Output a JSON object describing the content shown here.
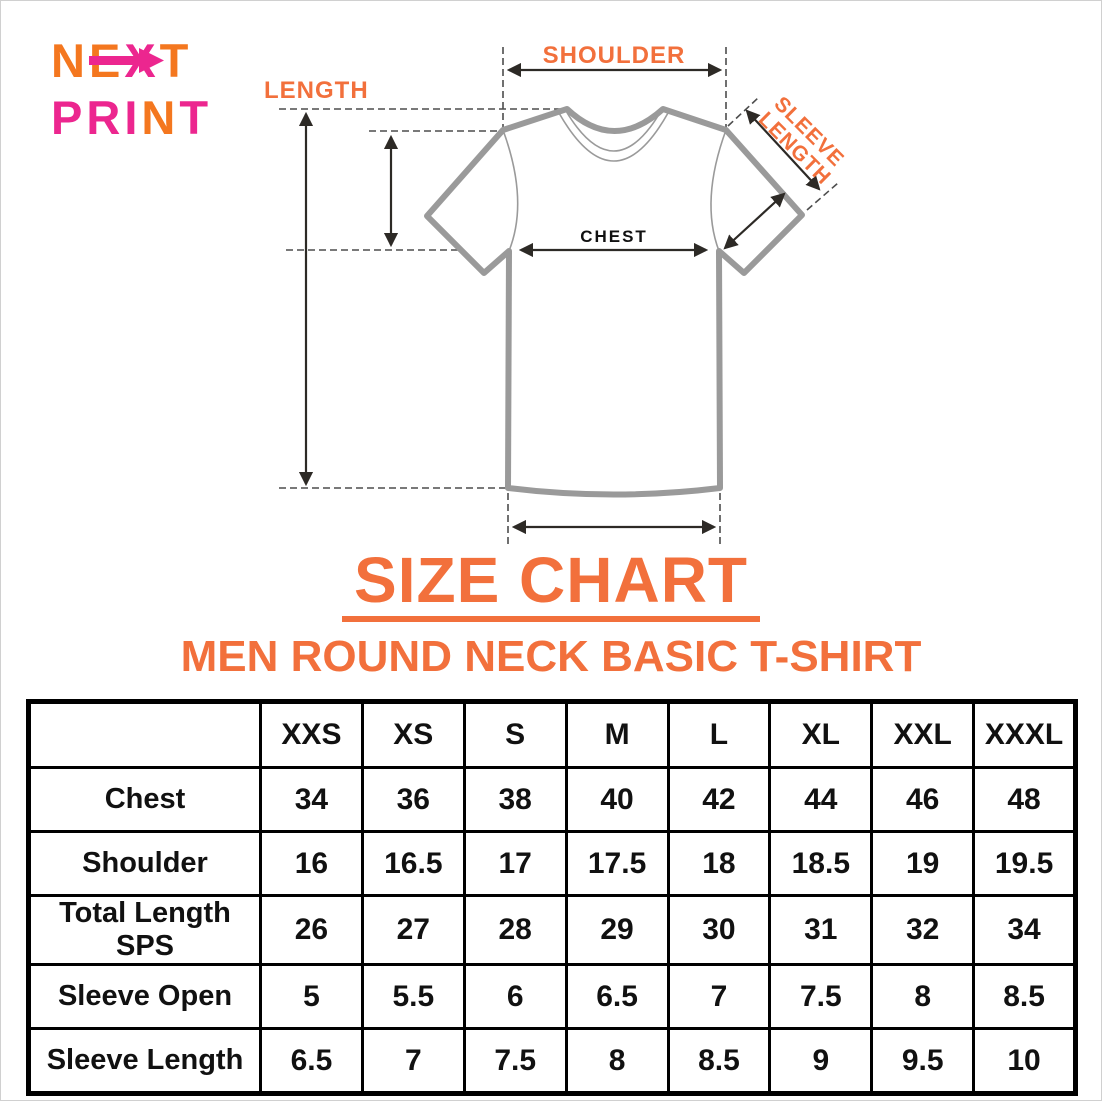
{
  "brand": {
    "line1": "NEXT",
    "line1_colors": [
      "#F4771F",
      "#F4771F",
      "#EC268F",
      "#F4771F"
    ],
    "line2": "PRINT",
    "line2_colors": [
      "#EC268F",
      "#EC268F",
      "#EC268F",
      "#F4771F",
      "#EC268F"
    ]
  },
  "diagram": {
    "shoulder_label": "SHOULDER",
    "length_label": "LENGTH",
    "chest_label": "CHEST",
    "sleeve_label_line1": "SLEEVE",
    "sleeve_label_line2": "LENGTH"
  },
  "title": "SIZE CHART",
  "subtitle": "MEN ROUND NECK BASIC T-SHIRT",
  "colors": {
    "orange": "#F2703C",
    "logo_orange": "#F4771F",
    "pink": "#EC268F",
    "shirt_gray": "#9a9a9a",
    "line_dark": "#2d2a26",
    "dash_gray": "#4d4d4d",
    "table_border": "#000000",
    "text_black": "#111111",
    "page_border": "#d0d0d0"
  },
  "chart_data": {
    "type": "table",
    "title": "SIZE CHART",
    "subtitle": "MEN ROUND NECK BASIC T-SHIRT",
    "columns": [
      "",
      "XXS",
      "XS",
      "S",
      "M",
      "L",
      "XL",
      "XXL",
      "XXXL"
    ],
    "rows": [
      {
        "label": "Chest",
        "values": [
          "34",
          "36",
          "38",
          "40",
          "42",
          "44",
          "46",
          "48"
        ]
      },
      {
        "label": "Shoulder",
        "values": [
          "16",
          "16.5",
          "17",
          "17.5",
          "18",
          "18.5",
          "19",
          "19.5"
        ]
      },
      {
        "label": "Total Length SPS",
        "values": [
          "26",
          "27",
          "28",
          "29",
          "30",
          "31",
          "32",
          "34"
        ]
      },
      {
        "label": "Sleeve Open",
        "values": [
          "5",
          "5.5",
          "6",
          "6.5",
          "7",
          "7.5",
          "8",
          "8.5"
        ]
      },
      {
        "label": "Sleeve Length",
        "values": [
          "6.5",
          "7",
          "7.5",
          "8",
          "8.5",
          "9",
          "9.5",
          "10"
        ]
      }
    ]
  }
}
